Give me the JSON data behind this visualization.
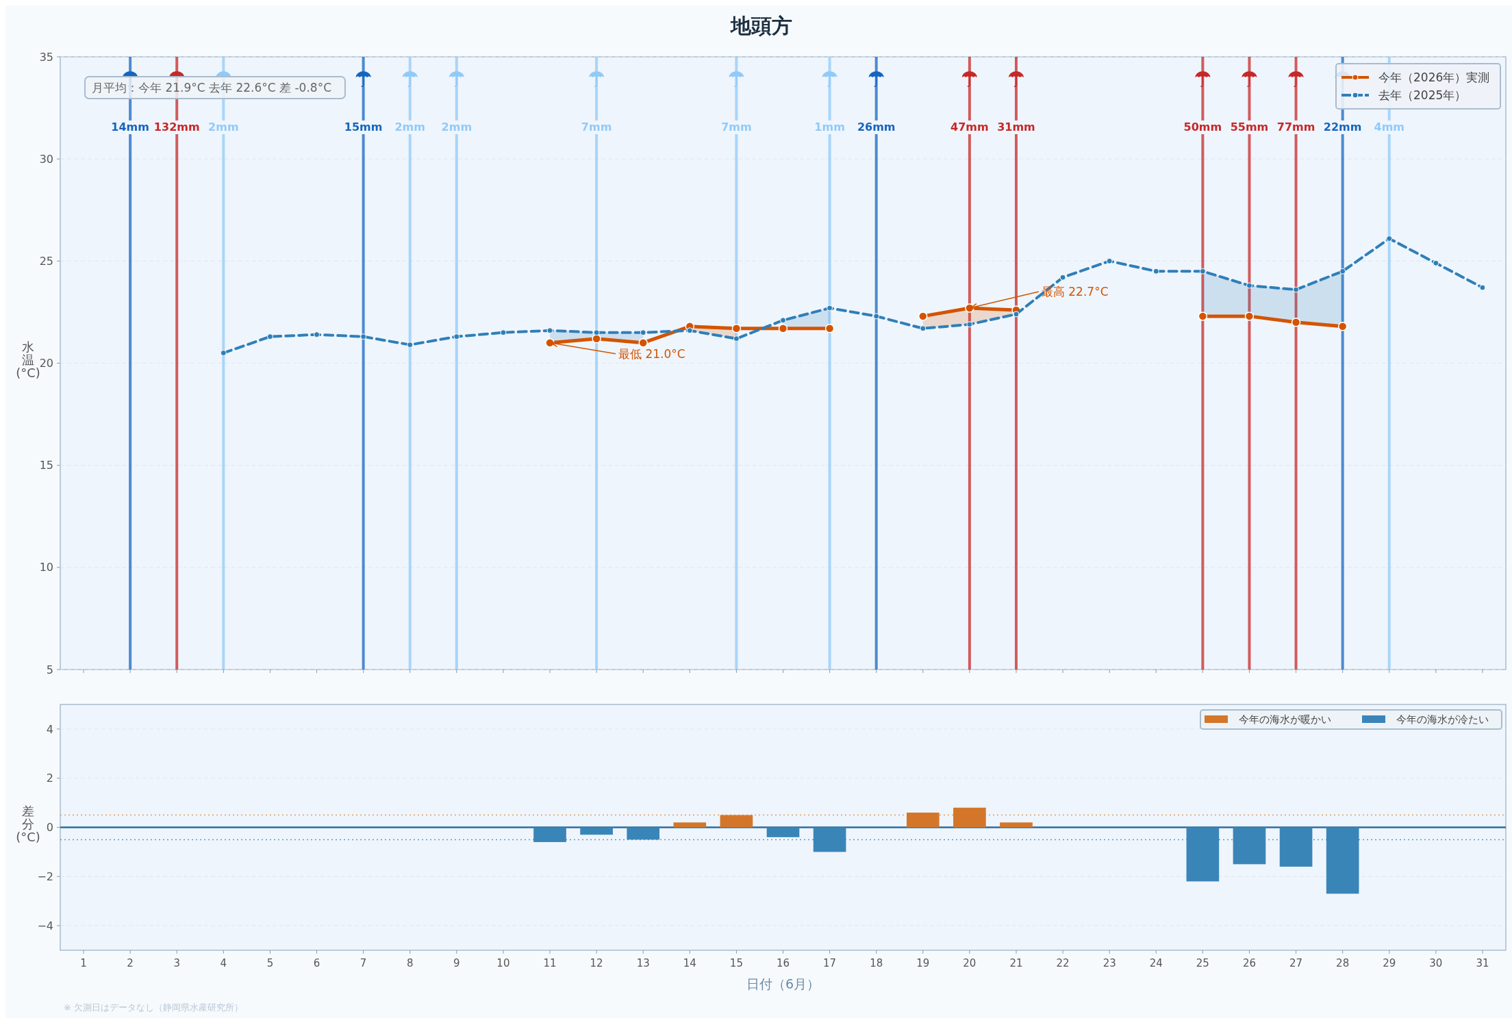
{
  "chart_data": [
    {
      "type": "line",
      "title": "地頭方",
      "ylabel": "水温(°C)",
      "series": [
        {
          "name": "今年（2026年）実測",
          "color": "#d35400",
          "marker": "circle",
          "line_style": "solid",
          "x": [
            11,
            12,
            13,
            14,
            15,
            16,
            17,
            18,
            19,
            20,
            21,
            22,
            23,
            24,
            25,
            26,
            27,
            28
          ],
          "values": [
            21.0,
            21.2,
            21.0,
            21.8,
            21.7,
            21.7,
            21.7,
            null,
            22.3,
            22.7,
            22.6,
            null,
            null,
            null,
            22.3,
            22.3,
            22.0,
            21.8
          ],
          "lower": [
            null,
            null,
            null,
            21.6,
            21.2,
            null,
            null,
            null,
            21.7,
            21.9,
            22.4,
            null,
            null,
            null,
            null,
            null,
            null,
            null
          ],
          "upper": [
            null,
            null,
            null,
            21.8,
            21.7,
            null,
            null,
            null,
            22.3,
            22.7,
            22.6,
            null,
            null,
            null,
            null,
            null,
            null,
            null
          ]
        },
        {
          "name": "去年（2025年）",
          "color": "#2e7fb8",
          "marker": "circle",
          "line_style": "dashed",
          "x": [
            4,
            5,
            6,
            7,
            8,
            9,
            10,
            11,
            12,
            13,
            14,
            15,
            16,
            17,
            18,
            19,
            20,
            21,
            22,
            23,
            24,
            25,
            26,
            27,
            28,
            29,
            30,
            31
          ],
          "values": [
            20.5,
            21.3,
            21.4,
            21.3,
            20.9,
            21.3,
            21.5,
            21.6,
            21.5,
            21.5,
            21.6,
            21.2,
            22.1,
            22.7,
            22.3,
            21.7,
            21.9,
            22.4,
            24.2,
            25.0,
            24.5,
            24.5,
            23.8,
            23.6,
            24.5,
            26.1,
            24.9,
            23.7
          ],
          "lower": [
            null,
            null,
            null,
            null,
            null,
            null,
            null,
            21.0,
            21.2,
            21.0,
            null,
            null,
            21.7,
            21.7,
            null,
            null,
            null,
            null,
            null,
            null,
            null,
            22.3,
            22.3,
            22.0,
            21.8,
            null,
            null,
            null
          ],
          "upper": [
            null,
            null,
            null,
            null,
            null,
            null,
            null,
            21.6,
            21.5,
            21.5,
            null,
            null,
            22.1,
            22.7,
            null,
            null,
            null,
            null,
            null,
            null,
            null,
            24.5,
            23.8,
            23.6,
            24.5,
            null,
            null,
            null
          ]
        }
      ],
      "xlim": [
        0.5,
        31.5
      ],
      "xticks": [
        1,
        2,
        3,
        4,
        5,
        6,
        7,
        8,
        9,
        10,
        11,
        12,
        13,
        14,
        15,
        16,
        17,
        18,
        19,
        20,
        21,
        22,
        23,
        24,
        25,
        26,
        27,
        28,
        29,
        30,
        31
      ],
      "ylim": [
        5,
        35
      ],
      "yticks": [
        5,
        10,
        15,
        20,
        25,
        30,
        35
      ],
      "tick_labels": "y",
      "grid": "y",
      "legend": "top right",
      "ref_lines": [
        {
          "axis": "x",
          "value": 2,
          "label": "14mm",
          "color": "#1565c0"
        },
        {
          "axis": "x",
          "value": 3,
          "label": "132mm",
          "color": "#c62828"
        },
        {
          "axis": "x",
          "value": 4,
          "label": "2mm",
          "color": "#90caf9"
        },
        {
          "axis": "x",
          "value": 7,
          "label": "15mm",
          "color": "#1565c0"
        },
        {
          "axis": "x",
          "value": 8,
          "label": "2mm",
          "color": "#90caf9"
        },
        {
          "axis": "x",
          "value": 9,
          "label": "2mm",
          "color": "#90caf9"
        },
        {
          "axis": "x",
          "value": 12,
          "label": "7mm",
          "color": "#90caf9"
        },
        {
          "axis": "x",
          "value": 15,
          "label": "7mm",
          "color": "#90caf9"
        },
        {
          "axis": "x",
          "value": 17,
          "label": "1mm",
          "color": "#90caf9"
        },
        {
          "axis": "x",
          "value": 18,
          "label": "26mm",
          "color": "#1565c0"
        },
        {
          "axis": "x",
          "value": 20,
          "label": "47mm",
          "color": "#c62828"
        },
        {
          "axis": "x",
          "value": 21,
          "label": "31mm",
          "color": "#c62828"
        },
        {
          "axis": "x",
          "value": 25,
          "label": "50mm",
          "color": "#c62828"
        },
        {
          "axis": "x",
          "value": 26,
          "label": "55mm",
          "color": "#c62828"
        },
        {
          "axis": "x",
          "value": 27,
          "label": "77mm",
          "color": "#c62828"
        },
        {
          "axis": "x",
          "value": 28,
          "label": "22mm",
          "color": "#1565c0"
        },
        {
          "axis": "x",
          "value": 29,
          "label": "4mm",
          "color": "#90caf9"
        }
      ],
      "annotations": [
        "月平均：今年 21.9°C  去年 22.6°C  差 -0.8°C",
        {
          "text": "最低 21.0°C",
          "x": 11,
          "y": 21.0
        },
        {
          "text": "最高 22.7°C",
          "x": 20,
          "y": 22.7
        }
      ]
    },
    {
      "type": "bar",
      "ylabel": "差分(°C)",
      "xlabel": "日付（6月）",
      "series": [
        {
          "name": "今年の海水が暖かい",
          "color": "#d4762a",
          "x": [
            14,
            15,
            19,
            20,
            21
          ],
          "values": [
            0.2,
            0.5,
            0.6,
            0.8,
            0.2
          ]
        },
        {
          "name": "今年の海水が冷たい",
          "color": "#3a85b8",
          "x": [
            11,
            12,
            13,
            16,
            17,
            25,
            26,
            27,
            28
          ],
          "values": [
            -0.6,
            -0.3,
            -0.5,
            -0.4,
            -1.0,
            -2.2,
            -1.5,
            -1.6,
            -2.7
          ]
        }
      ],
      "xlim": [
        0.5,
        31.5
      ],
      "xticks": [
        1,
        2,
        3,
        4,
        5,
        6,
        7,
        8,
        9,
        10,
        11,
        12,
        13,
        14,
        15,
        16,
        17,
        18,
        19,
        20,
        21,
        22,
        23,
        24,
        25,
        26,
        27,
        28,
        29,
        30,
        31
      ],
      "ylim": [
        -5,
        5
      ],
      "yticks": [
        {
          "value": -4,
          "label": "−4"
        },
        {
          "value": -2,
          "label": "−2"
        },
        0,
        2,
        4
      ],
      "grid": "y",
      "legend": "top right",
      "ref_lines": [
        {
          "axis": "y",
          "value": 0,
          "color": "#2e6e9e",
          "line_style": "solid"
        },
        {
          "axis": "y",
          "value": 0.5,
          "color": "#e0a060",
          "line_style": "dotted"
        },
        {
          "axis": "y",
          "value": -0.5,
          "color": "#5a9cc8",
          "line_style": "dotted"
        }
      ],
      "annotations": [
        "※ 欠測日はデータなし（静岡県水産研究所）"
      ]
    }
  ]
}
